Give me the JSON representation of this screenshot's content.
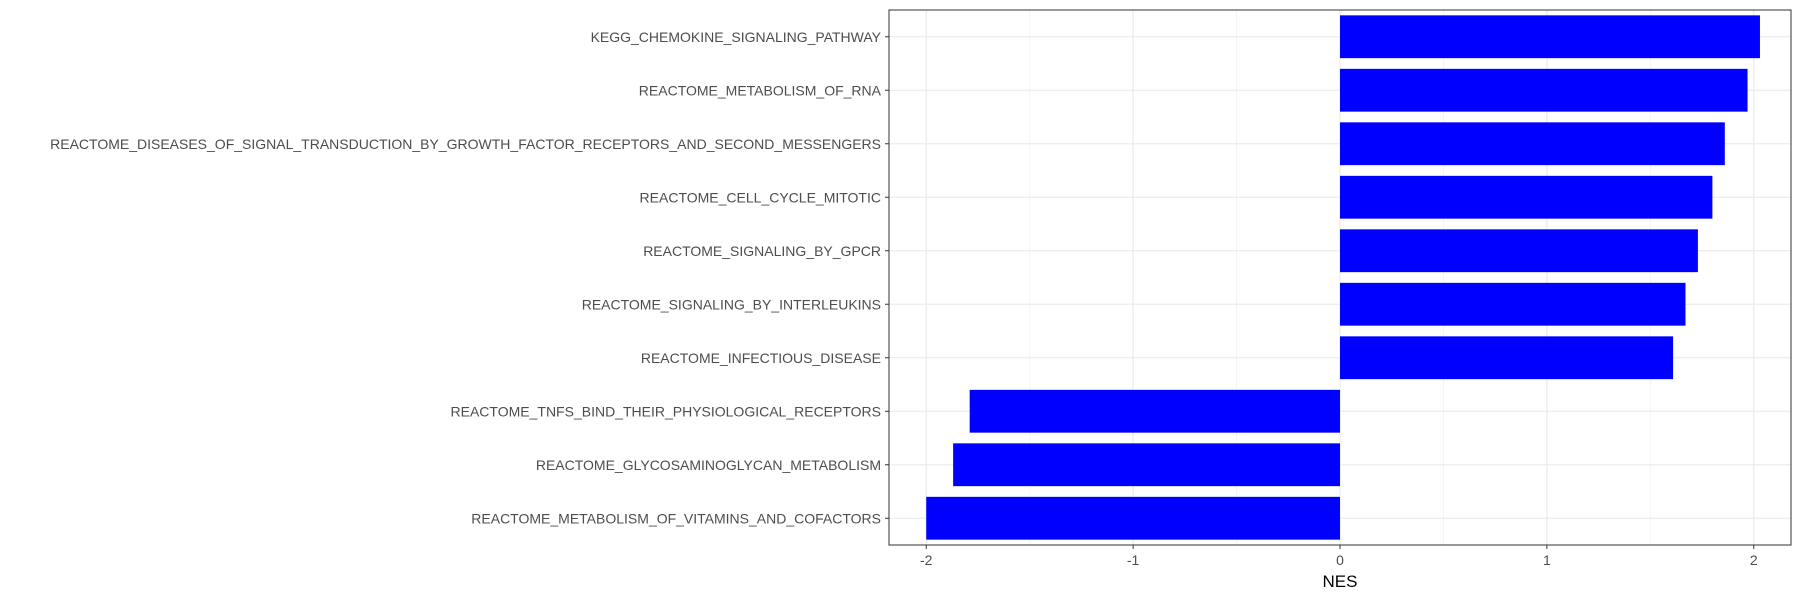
{
  "chart_data": {
    "type": "bar",
    "orientation": "horizontal",
    "title": "",
    "xlabel": "NES",
    "ylabel": "",
    "xlim": [
      -2.18,
      2.18
    ],
    "x_ticks": [
      -2,
      -1,
      0,
      1,
      2
    ],
    "x_tick_labels": [
      "-2",
      "-1",
      "0",
      "1",
      "2"
    ],
    "grid": true,
    "legend": "none",
    "bar_color": "#0000ff",
    "categories": [
      "KEGG_CHEMOKINE_SIGNALING_PATHWAY",
      "REACTOME_METABOLISM_OF_RNA",
      "REACTOME_DISEASES_OF_SIGNAL_TRANSDUCTION_BY_GROWTH_FACTOR_RECEPTORS_AND_SECOND_MESSENGERS",
      "REACTOME_CELL_CYCLE_MITOTIC",
      "REACTOME_SIGNALING_BY_GPCR",
      "REACTOME_SIGNALING_BY_INTERLEUKINS",
      "REACTOME_INFECTIOUS_DISEASE",
      "REACTOME_TNFS_BIND_THEIR_PHYSIOLOGICAL_RECEPTORS",
      "REACTOME_GLYCOSAMINOGLYCAN_METABOLISM",
      "REACTOME_METABOLISM_OF_VITAMINS_AND_COFACTORS"
    ],
    "values": [
      2.03,
      1.97,
      1.86,
      1.8,
      1.73,
      1.67,
      1.61,
      -1.79,
      -1.87,
      -2.0
    ]
  }
}
